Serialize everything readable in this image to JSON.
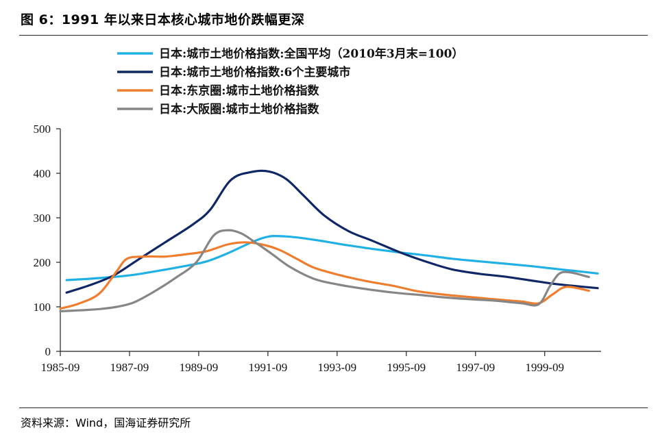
{
  "header": {
    "title": "图 6：1991 年以来日本核心城市地价跌幅更深"
  },
  "footer": {
    "source": "资料来源：Wind，国海证券研究所"
  },
  "chart_data": {
    "type": "line",
    "title": "图 6：1991 年以来日本核心城市地价跌幅更深",
    "xlabel": "",
    "ylabel": "",
    "ylim": [
      0,
      500
    ],
    "yticks": [
      0,
      100,
      200,
      300,
      400,
      500
    ],
    "x_range": [
      1985.67,
      2001.3
    ],
    "xticks": [
      {
        "label": "1985-09",
        "x": 1985.67
      },
      {
        "label": "1987-09",
        "x": 1987.67
      },
      {
        "label": "1989-09",
        "x": 1989.67
      },
      {
        "label": "1991-09",
        "x": 1991.67
      },
      {
        "label": "1993-09",
        "x": 1993.67
      },
      {
        "label": "1995-09",
        "x": 1995.67
      },
      {
        "label": "1997-09",
        "x": 1997.67
      },
      {
        "label": "1999-09",
        "x": 1999.67
      }
    ],
    "legend_position": "top",
    "series": [
      {
        "name": "日本:城市土地价格指数:全国平均（2010年3月末=100）",
        "color": "#1fb0e6",
        "x": [
          1985.85,
          1986.5,
          1987.2,
          1987.8,
          1988.5,
          1989.3,
          1989.9,
          1990.5,
          1991.2,
          1991.7,
          1992.2,
          1992.7,
          1993.3,
          1994.0,
          1994.7,
          1995.5,
          1996.3,
          1997.0,
          1997.8,
          1998.5,
          1999.2,
          1999.9,
          2000.5,
          2001.2
        ],
        "values": [
          160,
          163,
          167,
          172,
          181,
          192,
          202,
          220,
          245,
          258,
          258,
          254,
          247,
          238,
          230,
          222,
          215,
          208,
          202,
          197,
          192,
          186,
          181,
          175
        ]
      },
      {
        "name": "日本:城市土地价格指数:6个主要城市",
        "color": "#0f2767",
        "x": [
          1985.85,
          1986.5,
          1987.2,
          1987.9,
          1988.7,
          1989.5,
          1990.0,
          1990.6,
          1991.2,
          1991.7,
          1992.2,
          1992.7,
          1993.3,
          1994.0,
          1994.7,
          1995.5,
          1996.3,
          1997.0,
          1997.8,
          1998.5,
          1999.2,
          1999.9,
          2000.5,
          2001.2
        ],
        "values": [
          132,
          148,
          170,
          205,
          245,
          285,
          318,
          385,
          403,
          404,
          387,
          350,
          305,
          270,
          248,
          222,
          200,
          184,
          174,
          168,
          160,
          152,
          147,
          142
        ]
      },
      {
        "name": "日本:东京圈:城市土地价格指数",
        "color": "#ee7d2d",
        "x": [
          1985.67,
          1986.2,
          1986.8,
          1987.3,
          1987.6,
          1988.1,
          1988.7,
          1989.3,
          1989.9,
          1990.5,
          1991.0,
          1991.5,
          1992.0,
          1992.5,
          1993.0,
          1993.7,
          1994.5,
          1995.3,
          1996.0,
          1996.8,
          1997.5,
          1998.2,
          1999.0,
          1999.5,
          1999.9,
          2000.3,
          2000.95
        ],
        "values": [
          96,
          107,
          130,
          180,
          208,
          213,
          213,
          218,
          225,
          240,
          245,
          240,
          228,
          208,
          188,
          172,
          158,
          147,
          135,
          127,
          122,
          117,
          112,
          108,
          128,
          145,
          136
        ]
      },
      {
        "name": "日本:大阪圈:城市土地价格指数",
        "color": "#868686",
        "x": [
          1985.67,
          1986.2,
          1986.8,
          1987.3,
          1987.8,
          1988.4,
          1989.0,
          1989.6,
          1990.1,
          1990.5,
          1990.9,
          1991.3,
          1991.8,
          1992.3,
          1993.0,
          1993.7,
          1994.5,
          1995.3,
          1996.0,
          1996.8,
          1997.5,
          1998.2,
          1999.0,
          1999.5,
          1999.85,
          2000.2,
          2000.95
        ],
        "values": [
          90,
          92,
          95,
          100,
          110,
          135,
          165,
          200,
          260,
          272,
          265,
          245,
          218,
          190,
          163,
          150,
          140,
          132,
          127,
          121,
          117,
          114,
          108,
          106,
          150,
          178,
          167
        ]
      }
    ]
  }
}
